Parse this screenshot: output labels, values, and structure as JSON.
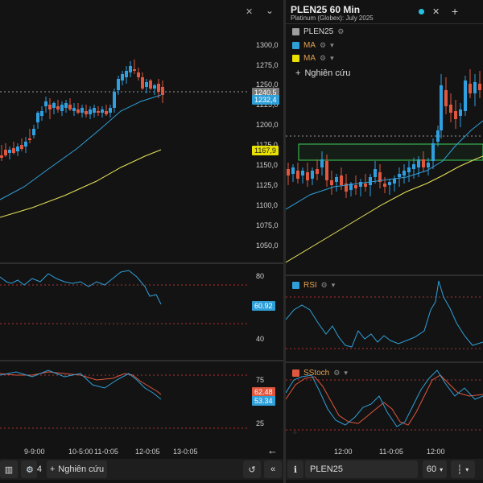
{
  "left": {
    "price_axis": [
      "1300,0",
      "1275,0",
      "1250,0",
      "1225,0",
      "1200,0",
      "1175,0",
      "1150,0",
      "1125,0",
      "1100,0",
      "1075,0",
      "1050,0"
    ],
    "tags": {
      "last": "1240,5",
      "close": "1232,4",
      "ma": "1167,9"
    },
    "rsi_axis": [
      "80",
      "40"
    ],
    "rsi_value": "60.92",
    "stoch_axis": [
      "75",
      "50",
      "25"
    ],
    "stoch_values": [
      "62.48",
      "53.34"
    ],
    "time_axis": [
      "9-9:00",
      "10-5:00",
      "11-0:05",
      "12-0:05",
      "13-0:05"
    ],
    "toolbar": {
      "settings_count": "4",
      "research_label": "Nghiên cứu"
    }
  },
  "right": {
    "header": {
      "title": "PLEN25 60 Min",
      "subtitle": "Platinum (Globex): July 2025"
    },
    "legend": [
      {
        "label": "PLEN25",
        "color": "#9e9e9e"
      },
      {
        "label": "MA",
        "color": "#2f9fd8"
      },
      {
        "label": "MA",
        "color": "#e8e000"
      }
    ],
    "research_label": "Nghiên cứu",
    "rsi_label": "RSI",
    "stoch_label": "SStoch",
    "time_axis": [
      "12:00",
      "11-0:05",
      "12:00"
    ],
    "toolbar": {
      "symbol": "PLEN25",
      "interval": "60"
    }
  },
  "colors": {
    "up": "#2f9fe0",
    "down": "#e0573f",
    "ma_fast": "#2f9fd8",
    "ma_slow": "#e8e35a",
    "rsi": "#2f9fd8",
    "stoch_k": "#e0573f",
    "stoch_d": "#2f9fd8",
    "zone": "#3fcf5a"
  },
  "chart_data": {
    "type": "line",
    "series": [
      {
        "name": "PLEN25",
        "values": [
          1158,
          1162,
          1165,
          1170,
          1172,
          1178,
          1190,
          1198,
          1205,
          1210,
          1214,
          1218,
          1220,
          1221,
          1222,
          1224,
          1228,
          1240,
          1248,
          1255,
          1262,
          1258,
          1251,
          1246,
          1240
        ]
      }
    ]
  }
}
